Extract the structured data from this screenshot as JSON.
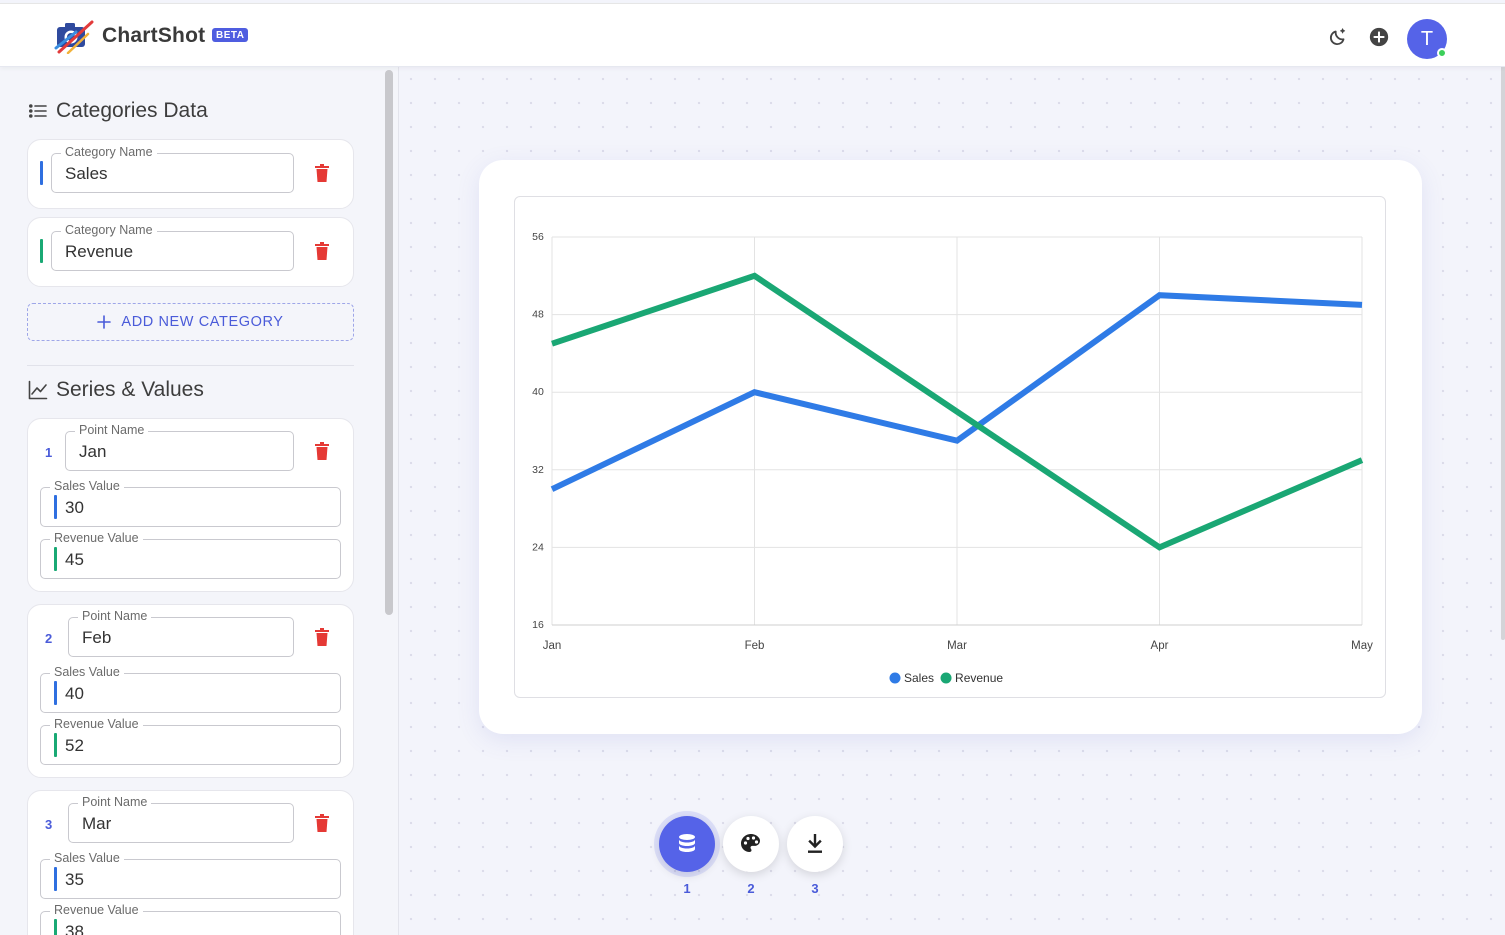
{
  "app": {
    "name": "ChartShot",
    "badge": "BETA",
    "avatar_initial": "T"
  },
  "header": {
    "icons": [
      "theme-toggle-icon",
      "add-circle-icon"
    ]
  },
  "sidebar": {
    "categories_title": "Categories Data",
    "categories": [
      {
        "label": "Category Name",
        "value": "Sales",
        "color": "#2f6fe0"
      },
      {
        "label": "Category Name",
        "value": "Revenue",
        "color": "#19a974"
      }
    ],
    "add_category_label": "ADD NEW CATEGORY",
    "series_title": "Series & Values",
    "points": [
      {
        "index": "1",
        "name_label": "Point Name",
        "name": "Jan",
        "sales_label": "Sales Value",
        "sales": "30",
        "revenue_label": "Revenue Value",
        "revenue": "45"
      },
      {
        "index": "2",
        "name_label": "Point Name",
        "name": "Feb",
        "sales_label": "Sales Value",
        "sales": "40",
        "revenue_label": "Revenue Value",
        "revenue": "52"
      },
      {
        "index": "3",
        "name_label": "Point Name",
        "name": "Mar",
        "sales_label": "Sales Value",
        "sales": "35",
        "revenue_label": "Revenue Value",
        "revenue": "38"
      }
    ]
  },
  "fabs": [
    {
      "num": "1",
      "icon": "database-icon",
      "active": true
    },
    {
      "num": "2",
      "icon": "palette-icon",
      "active": false
    },
    {
      "num": "3",
      "icon": "download-icon",
      "active": false
    }
  ],
  "chart_data": {
    "type": "line",
    "categories": [
      "Jan",
      "Feb",
      "Mar",
      "Apr",
      "May"
    ],
    "series": [
      {
        "name": "Sales",
        "color": "#2f7be6",
        "values": [
          30,
          40,
          35,
          50,
          49
        ]
      },
      {
        "name": "Revenue",
        "color": "#1aa774",
        "values": [
          45,
          52,
          38,
          24,
          33
        ]
      }
    ],
    "yticks": [
      "56",
      "48",
      "40",
      "32",
      "24",
      "16"
    ],
    "ylim": [
      16,
      56
    ],
    "grid": true,
    "legend": "bottom-center"
  }
}
